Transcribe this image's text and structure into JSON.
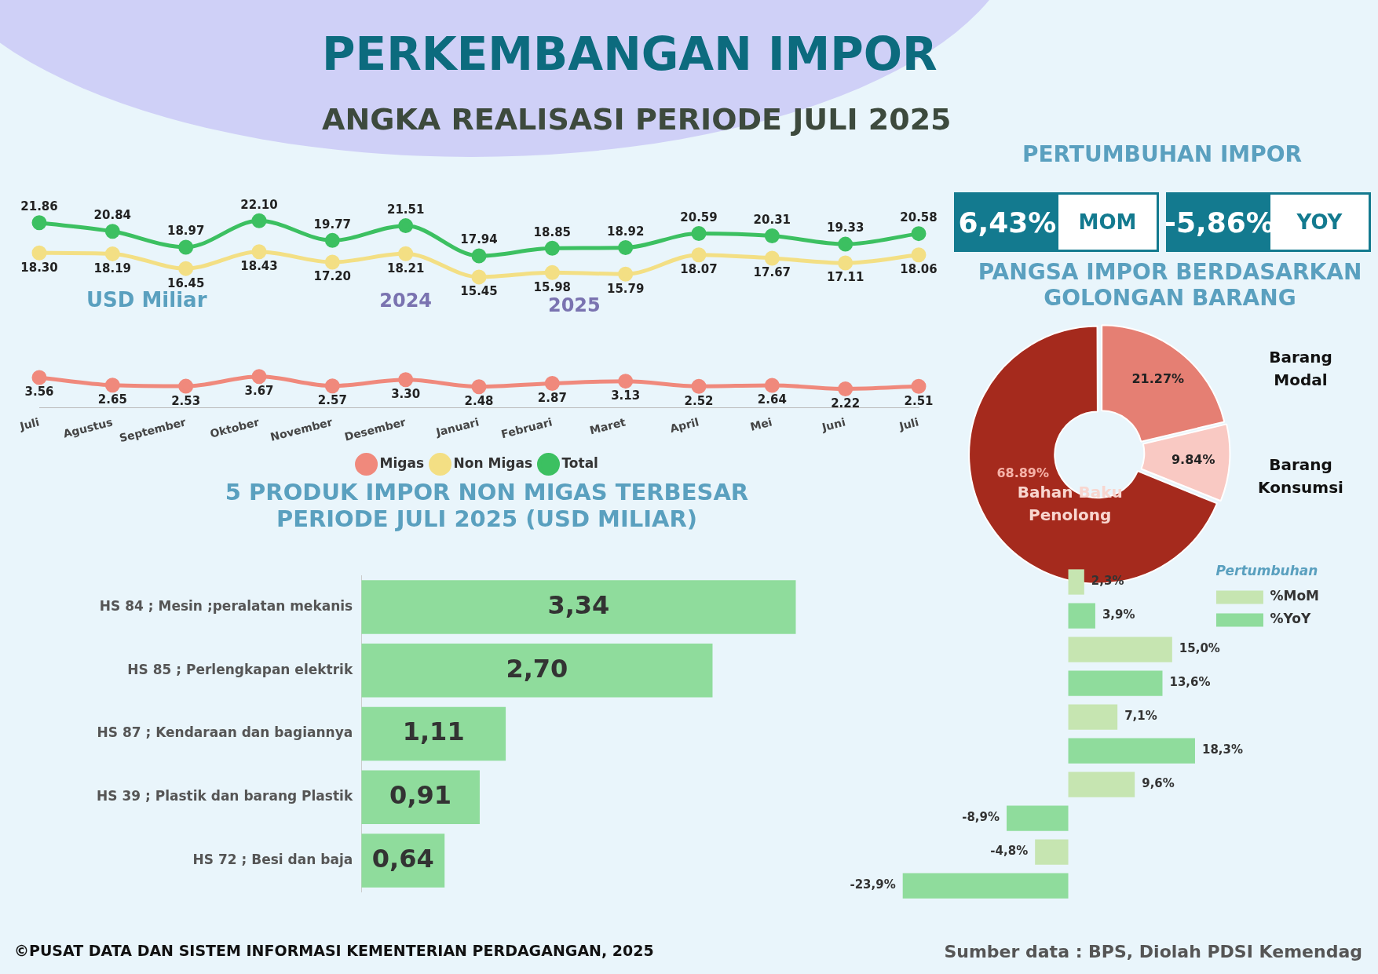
{
  "chart_data": [
    {
      "type": "line",
      "title": "PERKEMBANGAN IMPOR",
      "subtitle": "ANGKA REALISASI PERIODE JULI 2025",
      "ylabel": "USD Miliar",
      "categories": [
        "Juli",
        "Agustus",
        "September",
        "Oktober",
        "November",
        "Desember",
        "Januari",
        "Februari",
        "Maret",
        "April",
        "Mei",
        "Juni",
        "Juli"
      ],
      "series": [
        {
          "name": "Migas",
          "color": "#f0897c",
          "values": [
            3.56,
            2.65,
            2.53,
            3.67,
            2.57,
            3.3,
            2.48,
            2.87,
            3.13,
            2.52,
            2.64,
            2.22,
            2.51
          ],
          "value_labels": [
            "3.56",
            "2.65",
            "2.53",
            "3.67",
            "2.57",
            "3.30",
            "2.48",
            "2.87",
            "3.13",
            "2.52",
            "2.64",
            "2.22",
            "2.51"
          ]
        },
        {
          "name": "Non Migas",
          "color": "#f3df84",
          "values": [
            18.3,
            18.19,
            16.45,
            18.43,
            17.2,
            18.21,
            15.45,
            15.98,
            15.79,
            18.07,
            17.67,
            17.11,
            18.06
          ],
          "value_labels": [
            "18.30",
            "18.19",
            "16.45",
            "18.43",
            "17.20",
            "18.21",
            "15.45",
            "15.98",
            "15.79",
            "18.07",
            "17.67",
            "17.11",
            "18.06"
          ]
        },
        {
          "name": "Total",
          "color": "#3cc061",
          "values": [
            21.86,
            20.84,
            18.97,
            22.1,
            19.77,
            21.51,
            17.94,
            18.85,
            18.92,
            20.59,
            20.31,
            19.33,
            20.58
          ],
          "value_labels": [
            "21.86",
            "20.84",
            "18.97",
            "22.10",
            "19.77",
            "21.51",
            "17.94",
            "18.85",
            "18.92",
            "20.59",
            "20.31",
            "19.33",
            "20.58"
          ]
        }
      ],
      "annotations": [
        "2024",
        "2025"
      ],
      "legend": "bottom",
      "marker": "circle",
      "grid": false,
      "tick_labels": "x"
    },
    {
      "type": "other",
      "title": "PERTUMBUHAN IMPOR",
      "annotations": [
        "6,43%",
        "MOM",
        "-5,86%",
        "YOY"
      ]
    },
    {
      "type": "donut",
      "title": "PANGSA IMPOR BERDASARKAN GOLONGAN BARANG",
      "categories": [
        "Barang Modal",
        "Barang Konsumsi",
        "Bahan Baku Penolong"
      ],
      "values": [
        21.27,
        9.84,
        68.89
      ],
      "colors": [
        "#e57f73",
        "#f9c9c3",
        "#a52a1d"
      ],
      "value_labels": [
        "21.27%",
        "9.84%",
        "68.89%"
      ],
      "legend": false
    },
    {
      "type": "bar",
      "orientation": "horizontal",
      "title": "5 PRODUK IMPOR NON MIGAS TERBESAR PERIODE JULI 2025 (USD MILIAR)",
      "categories": [
        "HS 84 ; Mesin ;peralatan mekanis",
        "HS 85 ; Perlengkapan elektrik",
        "HS 87 ; Kendaraan dan bagiannya",
        "HS 39 ; Plastik dan barang Plastik",
        "HS 72 ; Besi dan baja"
      ],
      "values": [
        3.34,
        2.7,
        1.11,
        0.91,
        0.64
      ],
      "value_labels": [
        "3,34",
        "2,70",
        "1,11",
        "0,91",
        "0,64"
      ],
      "color": "#8fdc9c",
      "legend": false,
      "grid": false,
      "tick_labels": "y"
    },
    {
      "type": "bar",
      "orientation": "horizontal",
      "categories": [
        null,
        null,
        null,
        null,
        null
      ],
      "legend_title": "Pertumbuhan",
      "series": [
        {
          "name": "%MoM",
          "color": "#c6e5b1",
          "values": [
            2.3,
            15.0,
            7.1,
            9.6,
            -4.8
          ],
          "value_labels": [
            "2,3%",
            "15,0%",
            "7,1%",
            "9,6%",
            "-4,8%"
          ]
        },
        {
          "name": "%YoY",
          "color": "#8fdc9c",
          "values": [
            3.9,
            13.6,
            18.3,
            -8.9,
            -23.9
          ],
          "value_labels": [
            "3,9%",
            "13,6%",
            "18,3%",
            "-8,9%",
            "-23,9%"
          ]
        }
      ],
      "legend": "top right",
      "grid": false,
      "tick_labels": false,
      "annotations": [
        "©PUSAT DATA DAN SISTEM INFORMASI KEMENTERIAN PERDAGANGAN, 2025",
        "Sumber data : BPS, Diolah PDSI Kemendag"
      ]
    }
  ]
}
